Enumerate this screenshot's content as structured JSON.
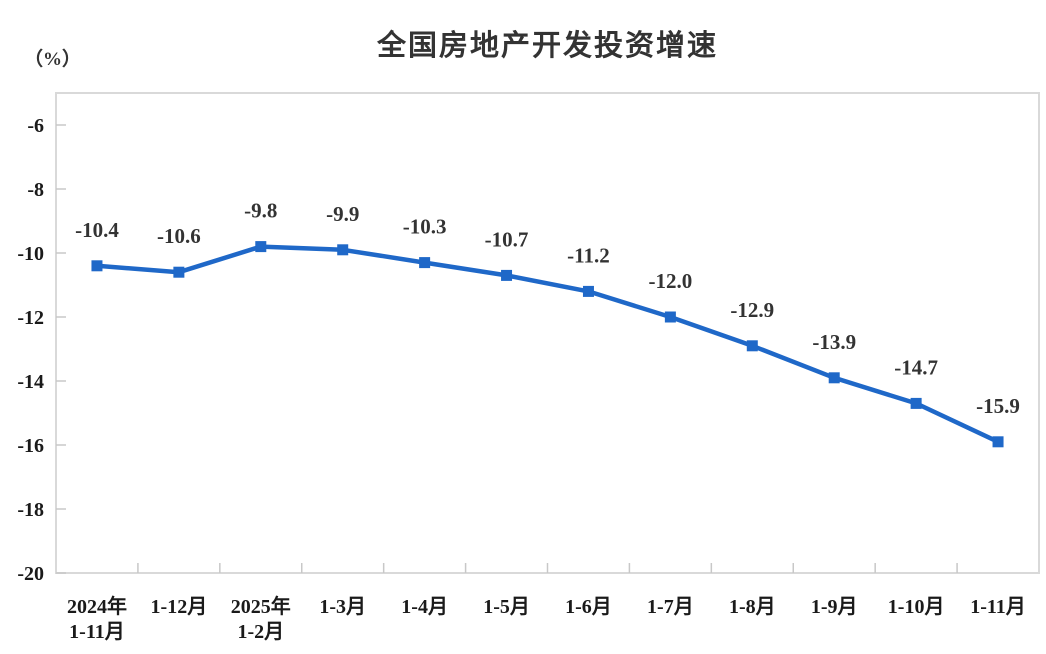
{
  "header": {
    "title": "全国房地产开发投资增速",
    "unit_label": "（%）"
  },
  "chart_data": {
    "type": "line",
    "title": "全国房地产开发投资增速",
    "xlabel": "",
    "ylabel": "（%）",
    "categories": [
      [
        "2024年",
        "1-11月"
      ],
      [
        "1-12月"
      ],
      [
        "2025年",
        "1-2月"
      ],
      [
        "1-3月"
      ],
      [
        "1-4月"
      ],
      [
        "1-5月"
      ],
      [
        "1-6月"
      ],
      [
        "1-7月"
      ],
      [
        "1-8月"
      ],
      [
        "1-9月"
      ],
      [
        "1-10月"
      ],
      [
        "1-11月"
      ]
    ],
    "values": [
      -10.4,
      -10.6,
      -9.8,
      -9.9,
      -10.3,
      -10.7,
      -11.2,
      -12.0,
      -12.9,
      -13.9,
      -14.7,
      -15.9
    ],
    "data_labels": [
      "-10.4",
      "-10.6",
      "-9.8",
      "-9.9",
      "-10.3",
      "-10.7",
      "-11.2",
      "-12.0",
      "-12.9",
      "-13.9",
      "-14.7",
      "-15.9"
    ],
    "yticks": [
      -6,
      -8,
      -10,
      -12,
      -14,
      -16,
      -18,
      -20
    ],
    "ylim": [
      -20,
      -5
    ],
    "grid": false,
    "legend": "none",
    "marker": "square",
    "line_color": "#1F68C8",
    "label_color": "#333333",
    "axis_color": "#D9D9D9",
    "tick_color": "#C8C8C8",
    "text_color": "#1a1a1a"
  }
}
